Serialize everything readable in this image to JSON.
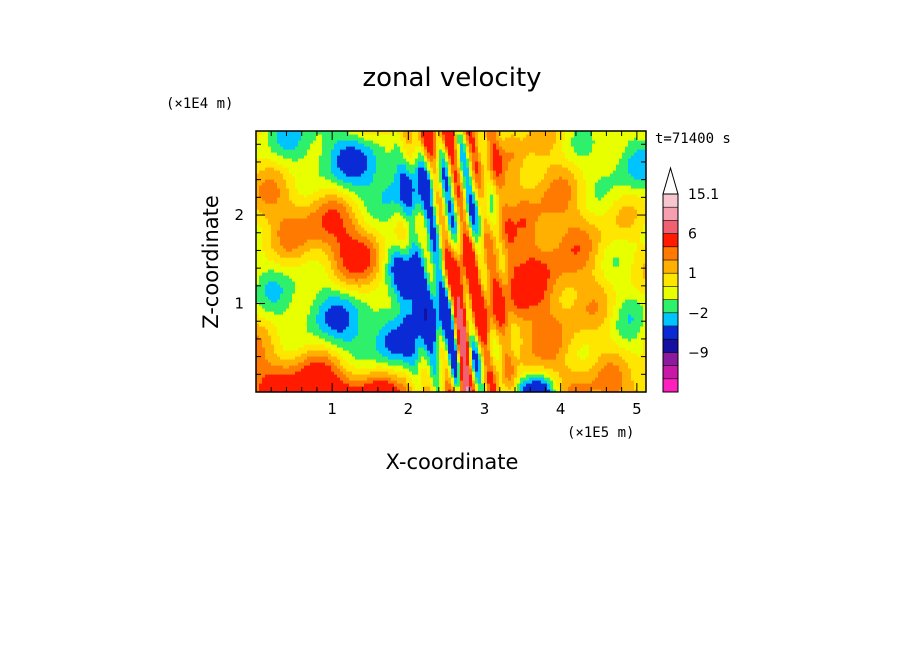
{
  "chart_data": {
    "type": "heatmap",
    "title": "zonal velocity",
    "xlabel": "X-coordinate",
    "ylabel": "Z-coordinate",
    "x_unit": "(×1E5 m)",
    "y_unit": "(×1E4 m)",
    "time_label": "t=71400 s",
    "xlim": [
      0,
      5.12
    ],
    "ylim": [
      0,
      2.95
    ],
    "x_ticks": [
      1,
      2,
      3,
      4,
      5
    ],
    "y_ticks": [
      1,
      2
    ],
    "colorbar": {
      "levels": [
        -15,
        -12,
        -9,
        -6,
        -3,
        -2,
        -1,
        0,
        1,
        2,
        3,
        6,
        9,
        12,
        15.1
      ],
      "colors": [
        "#ff1fbf",
        "#c718a8",
        "#8b1a9e",
        "#1510a0",
        "#0a2ad6",
        "#00c4ff",
        "#2ef06a",
        "#e8ff00",
        "#ffe600",
        "#ffb000",
        "#ff7a00",
        "#ff1a00",
        "#f06070",
        "#f4a0b0",
        "#f7c6cf"
      ],
      "labels": [
        {
          "value": 15.1,
          "text": "15.1"
        },
        {
          "value": 6,
          "text": "6"
        },
        {
          "value": 1,
          "text": "1"
        },
        {
          "value": -2,
          "text": "−2"
        },
        {
          "value": -9,
          "text": "−9"
        }
      ]
    }
  }
}
